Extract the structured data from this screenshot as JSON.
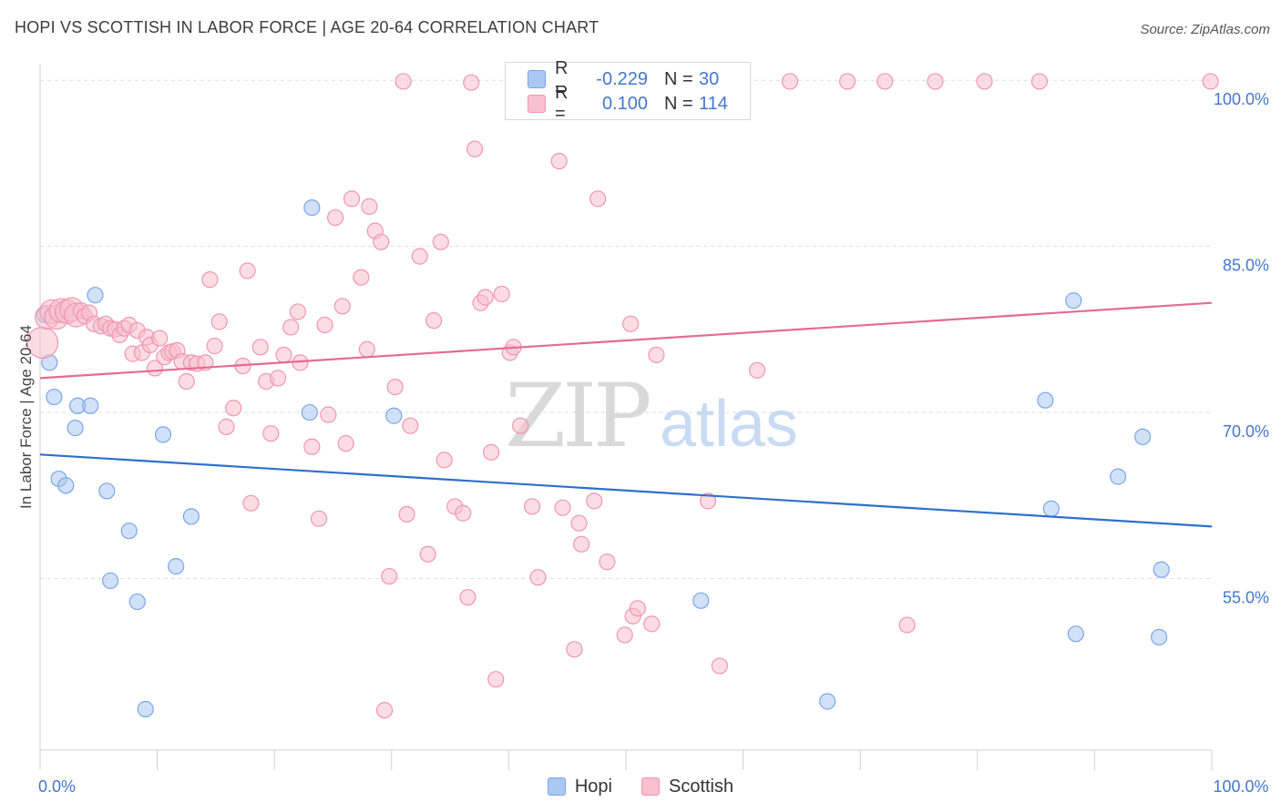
{
  "title": "HOPI VS SCOTTISH IN LABOR FORCE | AGE 20-64 CORRELATION CHART",
  "source": "Source: ZipAtlas.com",
  "watermark": {
    "zip": "ZIP",
    "atlas": "atlas"
  },
  "legend": {
    "hopi": {
      "r_label": "R =",
      "r_value": "-0.229",
      "n_label": "N =",
      "n_value": "30"
    },
    "scottish": {
      "r_label": "R =",
      "r_value": "0.100",
      "n_label": "N =",
      "n_value": "114"
    }
  },
  "bottom_legend": {
    "hopi": "Hopi",
    "scottish": "Scottish"
  },
  "colors": {
    "hopi_fill": "#aac8f2",
    "hopi_stroke": "#7aa6e6",
    "hopi_line": "#2e6fcc",
    "scottish_fill": "#f7bfd0",
    "scottish_stroke": "#ef96b2",
    "scottish_line": "#e56a94",
    "tick_label": "#4477cc",
    "grid": "#dddddd"
  },
  "chart_data": {
    "type": "scatter",
    "title": "HOPI VS SCOTTISH IN LABOR FORCE | AGE 20-64 CORRELATION CHART",
    "xlabel": "",
    "ylabel": "In Labor Force | Age 20-64",
    "xlim": [
      0,
      100
    ],
    "ylim": [
      39.5,
      101.5
    ],
    "x_tick_labels": [
      {
        "value": 0,
        "label": "0.0%"
      },
      {
        "value": 100,
        "label": "100.0%"
      }
    ],
    "y_tick_labels": [
      {
        "value": 100,
        "label": "100.0%"
      },
      {
        "value": 85,
        "label": "85.0%"
      },
      {
        "value": 70,
        "label": "70.0%"
      },
      {
        "value": 55,
        "label": "55.0%"
      }
    ],
    "series": [
      {
        "name": "Hopi",
        "r": -0.229,
        "n": 30,
        "trend": {
          "x": [
            0,
            100
          ],
          "y": [
            66.2,
            59.7
          ]
        },
        "points": [
          [
            0.4,
            78.8
          ],
          [
            0.8,
            74.5
          ],
          [
            1.2,
            71.4
          ],
          [
            1.6,
            64.0
          ],
          [
            2.2,
            63.4
          ],
          [
            3.0,
            68.6
          ],
          [
            3.2,
            70.6
          ],
          [
            4.3,
            70.6
          ],
          [
            4.7,
            80.6
          ],
          [
            5.7,
            62.9
          ],
          [
            6.0,
            54.8
          ],
          [
            7.6,
            59.3
          ],
          [
            8.3,
            52.9
          ],
          [
            9.0,
            43.2
          ],
          [
            10.5,
            68.0
          ],
          [
            11.6,
            56.1
          ],
          [
            12.9,
            60.6
          ],
          [
            23.0,
            70.0
          ],
          [
            23.2,
            88.5
          ],
          [
            30.2,
            69.7
          ],
          [
            56.4,
            53.0
          ],
          [
            67.2,
            43.9
          ],
          [
            85.8,
            71.1
          ],
          [
            86.3,
            61.3
          ],
          [
            88.2,
            80.1
          ],
          [
            88.4,
            50.0
          ],
          [
            92.0,
            64.2
          ],
          [
            94.1,
            67.8
          ],
          [
            95.5,
            49.7
          ],
          [
            95.7,
            55.8
          ]
        ]
      },
      {
        "name": "Scottish",
        "r": 0.1,
        "n": 114,
        "trend": {
          "x": [
            0,
            100
          ],
          "y": [
            73.1,
            79.9
          ]
        },
        "points": [
          [
            0.2,
            76.3
          ],
          [
            0.6,
            78.6
          ],
          [
            1.0,
            79.1
          ],
          [
            1.4,
            78.6
          ],
          [
            1.8,
            79.2
          ],
          [
            2.3,
            79.1
          ],
          [
            2.7,
            79.3
          ],
          [
            3.1,
            78.8
          ],
          [
            3.5,
            79.2
          ],
          [
            3.8,
            78.7
          ],
          [
            4.2,
            79.0
          ],
          [
            4.6,
            78.0
          ],
          [
            5.2,
            77.8
          ],
          [
            5.6,
            78.0
          ],
          [
            6.0,
            77.6
          ],
          [
            6.4,
            77.5
          ],
          [
            6.8,
            77.0
          ],
          [
            7.2,
            77.6
          ],
          [
            7.6,
            77.9
          ],
          [
            7.9,
            75.3
          ],
          [
            8.3,
            77.4
          ],
          [
            8.7,
            75.4
          ],
          [
            9.1,
            76.8
          ],
          [
            9.4,
            76.1
          ],
          [
            9.8,
            74.0
          ],
          [
            10.2,
            76.7
          ],
          [
            10.6,
            75.0
          ],
          [
            11.0,
            75.4
          ],
          [
            11.3,
            75.5
          ],
          [
            11.7,
            75.6
          ],
          [
            12.1,
            74.6
          ],
          [
            12.5,
            72.8
          ],
          [
            12.9,
            74.5
          ],
          [
            13.4,
            74.4
          ],
          [
            14.1,
            74.5
          ],
          [
            14.5,
            82.0
          ],
          [
            14.9,
            76.0
          ],
          [
            15.3,
            78.2
          ],
          [
            15.9,
            68.7
          ],
          [
            16.5,
            70.4
          ],
          [
            17.3,
            74.2
          ],
          [
            17.7,
            82.8
          ],
          [
            18.0,
            61.8
          ],
          [
            18.8,
            75.9
          ],
          [
            19.3,
            72.8
          ],
          [
            19.7,
            68.1
          ],
          [
            20.3,
            73.1
          ],
          [
            20.8,
            75.2
          ],
          [
            21.4,
            77.7
          ],
          [
            22.0,
            79.1
          ],
          [
            22.2,
            74.5
          ],
          [
            23.2,
            66.9
          ],
          [
            23.8,
            60.4
          ],
          [
            24.3,
            77.9
          ],
          [
            24.6,
            69.8
          ],
          [
            25.2,
            87.6
          ],
          [
            25.8,
            79.6
          ],
          [
            26.1,
            67.2
          ],
          [
            26.6,
            89.3
          ],
          [
            27.4,
            82.2
          ],
          [
            27.9,
            75.7
          ],
          [
            28.1,
            88.6
          ],
          [
            28.6,
            86.4
          ],
          [
            29.1,
            85.4
          ],
          [
            29.4,
            43.1
          ],
          [
            29.8,
            55.2
          ],
          [
            30.3,
            72.3
          ],
          [
            31.0,
            99.9
          ],
          [
            31.3,
            60.8
          ],
          [
            31.6,
            68.8
          ],
          [
            32.4,
            84.1
          ],
          [
            33.1,
            57.2
          ],
          [
            33.6,
            78.3
          ],
          [
            34.2,
            85.4
          ],
          [
            34.5,
            65.7
          ],
          [
            35.4,
            61.5
          ],
          [
            36.1,
            60.9
          ],
          [
            36.5,
            53.3
          ],
          [
            36.8,
            99.8
          ],
          [
            37.1,
            93.8
          ],
          [
            37.6,
            79.9
          ],
          [
            38.0,
            80.4
          ],
          [
            38.5,
            66.4
          ],
          [
            38.9,
            45.9
          ],
          [
            39.4,
            80.7
          ],
          [
            40.1,
            75.4
          ],
          [
            40.4,
            75.9
          ],
          [
            41.0,
            68.8
          ],
          [
            42.0,
            61.5
          ],
          [
            42.5,
            55.1
          ],
          [
            44.3,
            92.7
          ],
          [
            44.6,
            61.4
          ],
          [
            45.6,
            48.6
          ],
          [
            45.7,
            99.9
          ],
          [
            46.0,
            60.0
          ],
          [
            46.2,
            58.1
          ],
          [
            47.3,
            62.0
          ],
          [
            47.6,
            89.3
          ],
          [
            48.4,
            56.5
          ],
          [
            49.9,
            49.9
          ],
          [
            50.4,
            78.0
          ],
          [
            50.6,
            51.6
          ],
          [
            51.0,
            52.3
          ],
          [
            52.2,
            50.9
          ],
          [
            52.6,
            75.2
          ],
          [
            55.3,
            99.9
          ],
          [
            57.0,
            62.0
          ],
          [
            58.0,
            47.1
          ],
          [
            59.3,
            99.9
          ],
          [
            61.2,
            73.8
          ],
          [
            64.0,
            99.9
          ],
          [
            68.9,
            99.9
          ],
          [
            72.1,
            99.9
          ],
          [
            74.0,
            50.8
          ],
          [
            76.4,
            99.9
          ],
          [
            80.6,
            99.9
          ],
          [
            85.3,
            99.9
          ],
          [
            99.9,
            99.9
          ]
        ]
      }
    ]
  }
}
